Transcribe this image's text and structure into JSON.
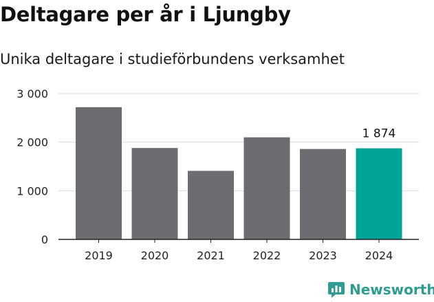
{
  "title": "Deltagare per år i Ljungby",
  "subtitle": "Unika deltagare i studieförbundens verksamhet",
  "brand": {
    "name": "Newsworthy",
    "color": "#2e9c92"
  },
  "colors": {
    "bar": "#6d6c71",
    "highlight": "#00a398",
    "grid": "#d9d9d9",
    "axis": "#222222"
  },
  "chart_data": {
    "type": "bar",
    "categories": [
      "2019",
      "2020",
      "2021",
      "2022",
      "2023",
      "2024"
    ],
    "values": [
      2720,
      1880,
      1410,
      2100,
      1860,
      1874
    ],
    "highlight_index": 5,
    "data_labels": [
      {
        "index": 5,
        "text": "1 874"
      }
    ],
    "yticks": [
      {
        "value": 0,
        "label": "0"
      },
      {
        "value": 1000,
        "label": "1 000"
      },
      {
        "value": 2000,
        "label": "2 000"
      },
      {
        "value": 3000,
        "label": "3 000"
      }
    ],
    "ylim": [
      0,
      3000
    ],
    "grid": true
  }
}
